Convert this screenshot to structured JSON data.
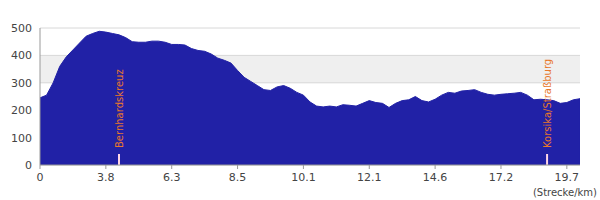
{
  "chart_data": {
    "type": "area",
    "categories": [
      "0",
      null,
      null,
      null,
      null,
      null,
      null,
      null,
      null,
      null,
      "3.8",
      null,
      null,
      null,
      null,
      null,
      null,
      null,
      null,
      null,
      "6.3",
      null,
      null,
      null,
      null,
      null,
      null,
      null,
      null,
      null,
      "8.5",
      null,
      null,
      null,
      null,
      null,
      null,
      null,
      null,
      null,
      "10.1",
      null,
      null,
      null,
      null,
      null,
      null,
      null,
      null,
      null,
      "12.1",
      null,
      null,
      null,
      null,
      null,
      null,
      null,
      null,
      null,
      "14.6",
      null,
      null,
      null,
      null,
      null,
      null,
      null,
      null,
      null,
      "17.2",
      null,
      null,
      null,
      null,
      null,
      null,
      null,
      null,
      null,
      "19.7",
      null,
      null
    ],
    "values": [
      245,
      255,
      300,
      360,
      395,
      420,
      445,
      470,
      480,
      488,
      485,
      480,
      475,
      465,
      450,
      448,
      448,
      452,
      452,
      448,
      440,
      440,
      438,
      425,
      418,
      415,
      405,
      390,
      382,
      372,
      345,
      320,
      305,
      290,
      275,
      272,
      285,
      290,
      280,
      265,
      255,
      230,
      215,
      212,
      215,
      212,
      220,
      218,
      215,
      225,
      235,
      228,
      225,
      210,
      225,
      235,
      238,
      250,
      235,
      230,
      240,
      255,
      265,
      262,
      270,
      272,
      275,
      265,
      258,
      255,
      258,
      260,
      262,
      265,
      255,
      238,
      240,
      238,
      235,
      225,
      228,
      238,
      242
    ],
    "color": "#2121a6",
    "ylim": [
      0,
      500
    ],
    "yticks": [
      0,
      100,
      200,
      300,
      400,
      500
    ],
    "grid": true,
    "x_label": "(Strecke/km)",
    "annotations": [
      {
        "text": "Bernhardskreuz",
        "index": 12
      },
      {
        "text": "Korsika/Straßburg",
        "index": 77
      }
    ]
  }
}
